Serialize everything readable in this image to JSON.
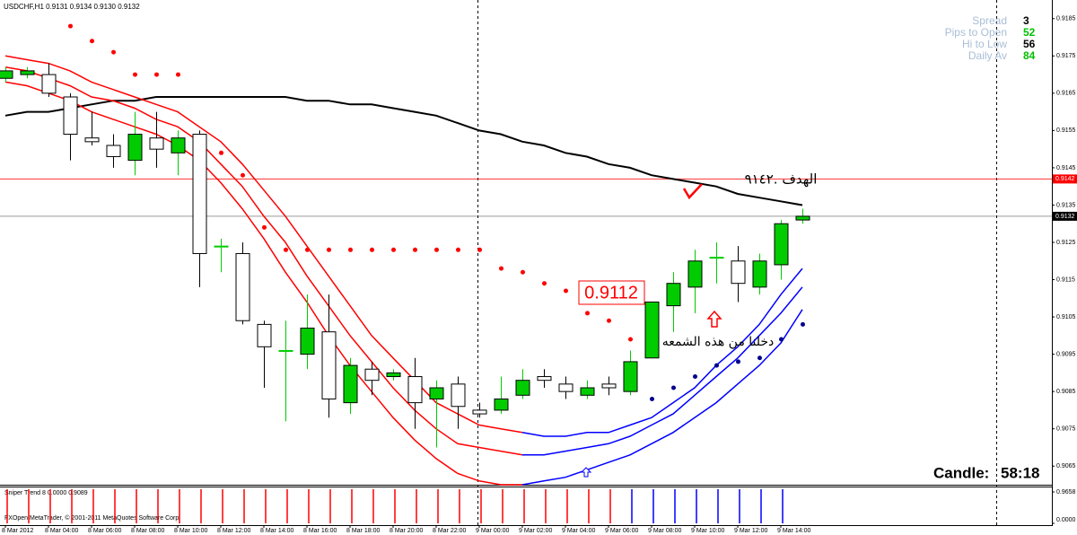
{
  "chart_data": {
    "type": "candlestick",
    "title": "USDCHF,H1  0.9131 0.9134 0.9130 0.9132",
    "categories": [
      "8 Mar 2012",
      null,
      "8 Mar 04:00",
      null,
      "8 Mar 06:00",
      null,
      "8 Mar 08:00",
      null,
      "8 Mar 10:00",
      null,
      "8 Mar 12:00",
      null,
      "8 Mar 14:00",
      null,
      "8 Mar 16:00",
      null,
      "8 Mar 18:00",
      null,
      "8 Mar 20:00",
      null,
      "8 Mar 22:00",
      null,
      "9 Mar 00:00",
      null,
      "9 Mar 02:00",
      null,
      "9 Mar 04:00",
      null,
      "9 Mar 06:00",
      null,
      "9 Mar 08:00",
      null,
      "9 Mar 10:00",
      null,
      "9 Mar 12:00",
      null,
      "9 Mar 14:00",
      null
    ],
    "open": [
      0.9169,
      0.917,
      0.917,
      0.9164,
      0.9153,
      0.9151,
      0.9147,
      0.9153,
      0.9149,
      0.9154,
      0.9124,
      0.9122,
      0.9103,
      0.9096,
      0.9095,
      0.9101,
      0.9082,
      0.9091,
      0.9089,
      0.9089,
      0.9083,
      0.9087,
      0.908,
      0.908,
      0.9084,
      0.9089,
      0.9087,
      0.9084,
      0.9087,
      0.9085,
      0.9094,
      0.9108,
      0.9113,
      0.9121,
      0.912,
      0.9113,
      0.9119,
      0.9131
    ],
    "high": [
      0.9172,
      0.9172,
      0.9173,
      0.9165,
      0.916,
      0.9154,
      0.916,
      0.916,
      0.9155,
      0.9155,
      0.9126,
      0.9125,
      0.9104,
      0.9104,
      0.9111,
      0.9111,
      0.9094,
      0.9093,
      0.9091,
      0.9094,
      0.9088,
      0.9089,
      0.9082,
      0.9089,
      0.9091,
      0.9091,
      0.9089,
      0.9088,
      0.9089,
      0.9096,
      0.9109,
      0.9117,
      0.9123,
      0.9125,
      0.9124,
      0.9122,
      0.9131,
      0.9134
    ],
    "low": [
      0.9168,
      0.9169,
      0.9164,
      0.9147,
      0.9151,
      0.9145,
      0.9143,
      0.9145,
      0.9143,
      0.9113,
      0.9117,
      0.9103,
      0.9086,
      0.9077,
      0.9091,
      0.9078,
      0.9079,
      0.9084,
      0.9088,
      0.9075,
      0.907,
      0.9075,
      0.9078,
      0.9079,
      0.9083,
      0.9086,
      0.9083,
      0.9083,
      0.9084,
      0.9084,
      0.9094,
      0.9101,
      0.9106,
      0.9114,
      0.9109,
      0.9111,
      0.9115,
      0.913
    ],
    "close": [
      0.9171,
      0.9171,
      0.9165,
      0.9154,
      0.9152,
      0.9148,
      0.9154,
      0.915,
      0.9153,
      0.9122,
      0.9124,
      0.9104,
      0.9097,
      0.9096,
      0.9102,
      0.9083,
      0.9092,
      0.9088,
      0.909,
      0.9082,
      0.9086,
      0.9081,
      0.9079,
      0.9083,
      0.9088,
      0.9088,
      0.9085,
      0.9086,
      0.9086,
      0.9093,
      0.9109,
      0.9114,
      0.912,
      0.9121,
      0.9114,
      0.912,
      0.913,
      0.9132
    ],
    "up_color": "#00cc00",
    "down_color": "#ffffff",
    "ylim": [
      0.906,
      0.919
    ],
    "yticks": [
      0.9185,
      0.9175,
      0.9165,
      0.9155,
      0.9145,
      0.9135,
      0.9125,
      0.9115,
      0.9105,
      0.9095,
      0.9085,
      0.9075,
      0.9065
    ],
    "lines": [
      {
        "color": "#000000",
        "values": [
          0.9159,
          0.916,
          0.916,
          0.9161,
          0.9162,
          0.9163,
          0.9163,
          0.9164,
          0.9164,
          0.9164,
          0.9164,
          0.9164,
          0.9164,
          0.9164,
          0.9163,
          0.9163,
          0.9162,
          0.9162,
          0.9161,
          0.916,
          0.9159,
          0.9157,
          0.9155,
          0.9154,
          0.9152,
          0.9151,
          0.9149,
          0.9148,
          0.9146,
          0.9145,
          0.9143,
          0.9142,
          0.9141,
          0.914,
          0.9138,
          0.9137,
          0.9136,
          0.9135
        ]
      },
      {
        "color": "#ff0000",
        "values": [
          0.9175,
          0.9174,
          0.9173,
          0.9171,
          0.9168,
          0.9166,
          0.9164,
          0.9162,
          0.916,
          0.9156,
          0.9152,
          0.9146,
          0.9139,
          0.9132,
          0.9124,
          0.9116,
          0.9108,
          0.91,
          0.9094,
          0.9088,
          0.9082,
          0.9079,
          0.9076,
          0.9075,
          0.9074,
          null,
          null,
          null,
          null,
          null,
          null,
          null,
          null,
          null,
          null,
          null,
          null,
          null
        ]
      },
      {
        "color": "#ff0000",
        "values": [
          0.9172,
          0.9171,
          0.9169,
          0.9167,
          0.9164,
          0.9163,
          0.9161,
          0.9158,
          0.9156,
          0.9152,
          0.9146,
          0.914,
          0.9132,
          0.9125,
          0.9116,
          0.9108,
          0.91,
          0.9093,
          0.9086,
          0.908,
          0.9075,
          0.9071,
          0.907,
          0.9069,
          0.9068,
          null,
          null,
          null,
          null,
          null,
          null,
          null,
          null,
          null,
          null,
          null,
          null,
          null
        ]
      },
      {
        "color": "#ff0000",
        "values": [
          0.9168,
          0.9167,
          0.9165,
          0.9163,
          0.916,
          0.9158,
          0.9156,
          0.9154,
          0.9151,
          0.9147,
          0.9141,
          0.9134,
          0.9126,
          0.9117,
          0.9109,
          0.91,
          0.9092,
          0.9085,
          0.9078,
          0.9072,
          0.9067,
          0.9063,
          0.9061,
          0.906,
          0.906,
          null,
          null,
          null,
          null,
          null,
          null,
          null,
          null,
          null,
          null,
          null,
          null,
          null
        ]
      },
      {
        "color": "#0000ff",
        "values": [
          null,
          null,
          null,
          null,
          null,
          null,
          null,
          null,
          null,
          null,
          null,
          null,
          null,
          null,
          null,
          null,
          null,
          null,
          null,
          null,
          null,
          null,
          null,
          null,
          0.9074,
          0.9073,
          0.9073,
          0.9074,
          0.9074,
          0.9076,
          0.9078,
          0.9082,
          0.9086,
          0.9092,
          0.9097,
          0.9103,
          0.9111,
          0.9118
        ]
      },
      {
        "color": "#0000ff",
        "values": [
          null,
          null,
          null,
          null,
          null,
          null,
          null,
          null,
          null,
          null,
          null,
          null,
          null,
          null,
          null,
          null,
          null,
          null,
          null,
          null,
          null,
          null,
          null,
          null,
          0.9068,
          0.9068,
          0.9069,
          0.907,
          0.9071,
          0.9073,
          0.9076,
          0.9079,
          0.9084,
          0.9089,
          0.9094,
          0.91,
          0.9106,
          0.9113
        ]
      },
      {
        "color": "#0000ff",
        "values": [
          null,
          null,
          null,
          null,
          null,
          null,
          null,
          null,
          null,
          null,
          null,
          null,
          null,
          null,
          null,
          null,
          null,
          null,
          null,
          null,
          null,
          null,
          null,
          null,
          0.906,
          0.9061,
          0.9062,
          0.9064,
          0.9066,
          0.9068,
          0.9071,
          0.9074,
          0.9078,
          0.9082,
          0.9087,
          0.9092,
          0.9098,
          0.9107
        ]
      }
    ],
    "dots": [
      {
        "color": "#ff0000",
        "values": [
          null,
          null,
          null,
          0.9183,
          0.9179,
          0.9176,
          0.917,
          0.917,
          0.917,
          null,
          0.9149,
          0.9143,
          0.9129,
          0.9123,
          0.9123,
          0.9123,
          0.9123,
          0.9123,
          0.9123,
          0.9123,
          0.9123,
          0.9123,
          0.9123,
          0.9118,
          0.9117,
          0.9114,
          0.9112,
          0.9106,
          0.9104,
          0.9099,
          null,
          null,
          null,
          null,
          null,
          null,
          null,
          null
        ]
      },
      {
        "color": "#00008b",
        "values": [
          null,
          null,
          null,
          null,
          null,
          null,
          null,
          null,
          null,
          null,
          null,
          null,
          null,
          null,
          null,
          null,
          null,
          null,
          null,
          null,
          null,
          null,
          null,
          null,
          null,
          null,
          null,
          null,
          null,
          null,
          0.9083,
          0.9086,
          0.9089,
          0.9092,
          0.9093,
          0.9094,
          0.9099,
          0.9103
        ]
      }
    ],
    "levels": [
      {
        "value": 0.9142,
        "color": "#ff0000"
      },
      {
        "value": 0.9132,
        "color": "#000000"
      }
    ],
    "annotations": [
      "0.9112",
      "الهدف .٩١٤٢",
      "دخلنا من هذه الشمعه"
    ],
    "info": [
      {
        "label": "Spread",
        "value": 3,
        "color": "#000000"
      },
      {
        "label": "Pips to Open",
        "value": 52,
        "color": "#00c000"
      },
      {
        "label": "Hi to Low",
        "value": 56,
        "color": "#000000"
      },
      {
        "label": "Daily Av",
        "value": 84,
        "color": "#00c000"
      }
    ],
    "timer": {
      "label": "Candle:",
      "value": "58:18"
    },
    "indicator": {
      "title": "Sniper Trend 8 0.0000 0.9089",
      "ylim": [
        0,
        0.9658
      ],
      "yticks": [
        0.9658,
        {
          "value": 0,
          "label": "0.0000"
        }
      ],
      "series": [
        {
          "color": "#ff0000",
          "values": [
            0.9658,
            0.9658,
            0.9658,
            0.9658,
            0.9658,
            0.9658,
            0.9658,
            0.9658,
            0.9658,
            0.9658,
            0.9658,
            0.9658,
            0.9658,
            0.9658,
            0.9658,
            0.9658,
            0.9658,
            0.9658,
            0.9658,
            0.9658,
            0.9658,
            0.9658,
            0.9658,
            0.9658,
            0.9658,
            0.9658,
            0.9658,
            0.9658,
            0.9658,
            null,
            null,
            null,
            null,
            null,
            null,
            null,
            null,
            null
          ]
        },
        {
          "color": "#0000ff",
          "values": [
            null,
            null,
            null,
            null,
            null,
            null,
            null,
            null,
            null,
            null,
            null,
            null,
            null,
            null,
            null,
            null,
            null,
            null,
            null,
            null,
            null,
            null,
            null,
            null,
            null,
            null,
            null,
            null,
            null,
            0.9658,
            0.9658,
            0.9658,
            0.9658,
            0.9658,
            0.9658,
            0.9658,
            0.9658,
            null
          ]
        }
      ]
    },
    "copyright": "FXOpen MetaTrader, © 2001-2011 MetaQuotes Software Corp."
  }
}
